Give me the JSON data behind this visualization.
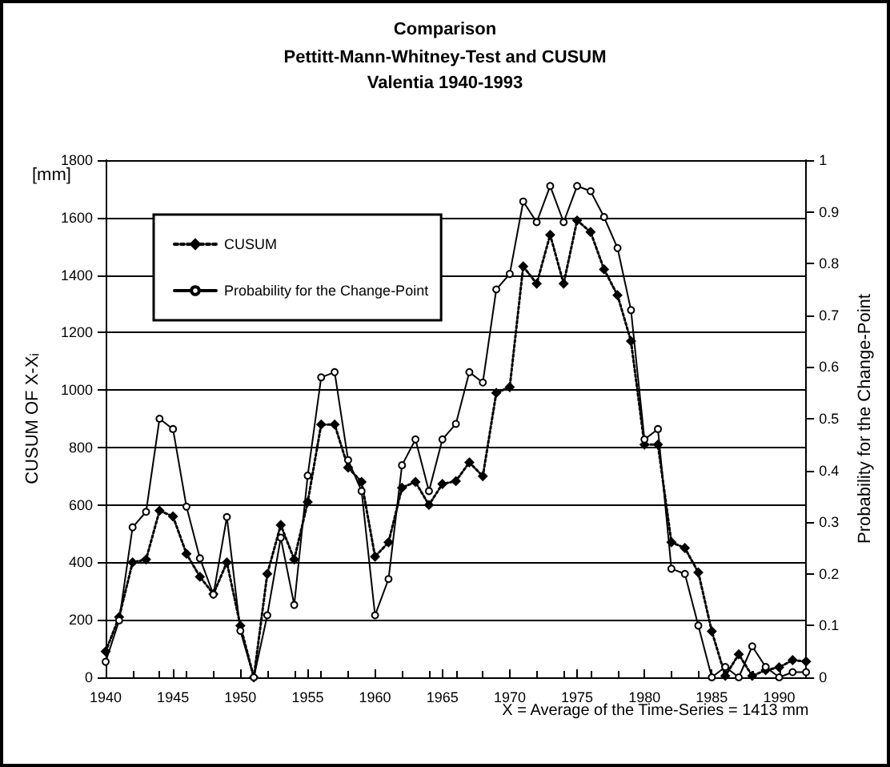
{
  "chart_data": {
    "type": "line",
    "title": "Comparison",
    "subtitle": "Pettitt-Mann-Whitney-Test and CUSUM\nValentia 1940-1993",
    "ylabel": "CUSUM OF X-Xᵢ",
    "y2label": "Probability for the Change-Point",
    "annotations": [
      "[mm]",
      "X = Average of the Time-Series = 1413 mm"
    ],
    "x": [
      1940,
      1941,
      1942,
      1943,
      1944,
      1945,
      1946,
      1947,
      1948,
      1949,
      1950,
      1951,
      1952,
      1953,
      1954,
      1955,
      1956,
      1957,
      1958,
      1959,
      1960,
      1961,
      1962,
      1963,
      1964,
      1965,
      1966,
      1967,
      1968,
      1969,
      1970,
      1971,
      1972,
      1973,
      1974,
      1975,
      1976,
      1977,
      1978,
      1979,
      1980,
      1981,
      1982,
      1983,
      1984,
      1985,
      1986,
      1987,
      1988,
      1989,
      1990,
      1991,
      1992
    ],
    "series": [
      {
        "name": "CUSUM",
        "color": "#000000",
        "marker": "diamond",
        "line_style": "dotted",
        "values": [
          90,
          210,
          400,
          410,
          580,
          560,
          430,
          350,
          290,
          400,
          180,
          0,
          360,
          530,
          410,
          610,
          880,
          880,
          730,
          680,
          420,
          470,
          660,
          680,
          600,
          673,
          683,
          748,
          700,
          990,
          1010,
          1430,
          1370,
          1540,
          1370,
          1590,
          1550,
          1420,
          1330,
          1170,
          810,
          810,
          470,
          450,
          365,
          160,
          5,
          80,
          5,
          25,
          35,
          60,
          55
        ]
      },
      {
        "name": "Probability for the Change-Point",
        "color": "#000000",
        "marker": "circle",
        "line_style": "solid",
        "axis": "y2",
        "values": [
          0.03,
          0.11,
          0.29,
          0.32,
          0.5,
          0.48,
          0.33,
          0.23,
          0.16,
          0.31,
          0.09,
          0,
          0.12,
          0.27,
          0.14,
          0.39,
          0.58,
          0.59,
          0.42,
          0.36,
          0.12,
          0.19,
          0.41,
          0.46,
          0.36,
          0.46,
          0.49,
          0.59,
          0.57,
          0.75,
          0.78,
          0.92,
          0.88,
          0.95,
          0.88,
          0.95,
          0.94,
          0.89,
          0.83,
          0.71,
          0.46,
          0.48,
          0.21,
          0.2,
          0.1,
          0,
          0.02,
          0,
          0.06,
          0.02,
          0,
          0.01,
          0.01
        ]
      }
    ],
    "xlim": [
      1940,
      1992
    ],
    "xticks": [
      1940,
      1945,
      1950,
      1955,
      1960,
      1965,
      1970,
      1975,
      1980,
      1985,
      1990
    ],
    "ylim": [
      0,
      1800
    ],
    "yticks": [
      0,
      200,
      400,
      600,
      800,
      1000,
      1200,
      1400,
      1600,
      1800
    ],
    "y2lim": [
      0,
      1
    ],
    "y2ticks": [
      0,
      0.1,
      0.2,
      0.3,
      0.4,
      0.5,
      0.6,
      0.7,
      0.8,
      0.9,
      1
    ],
    "grid": "y",
    "legend": "top left"
  }
}
